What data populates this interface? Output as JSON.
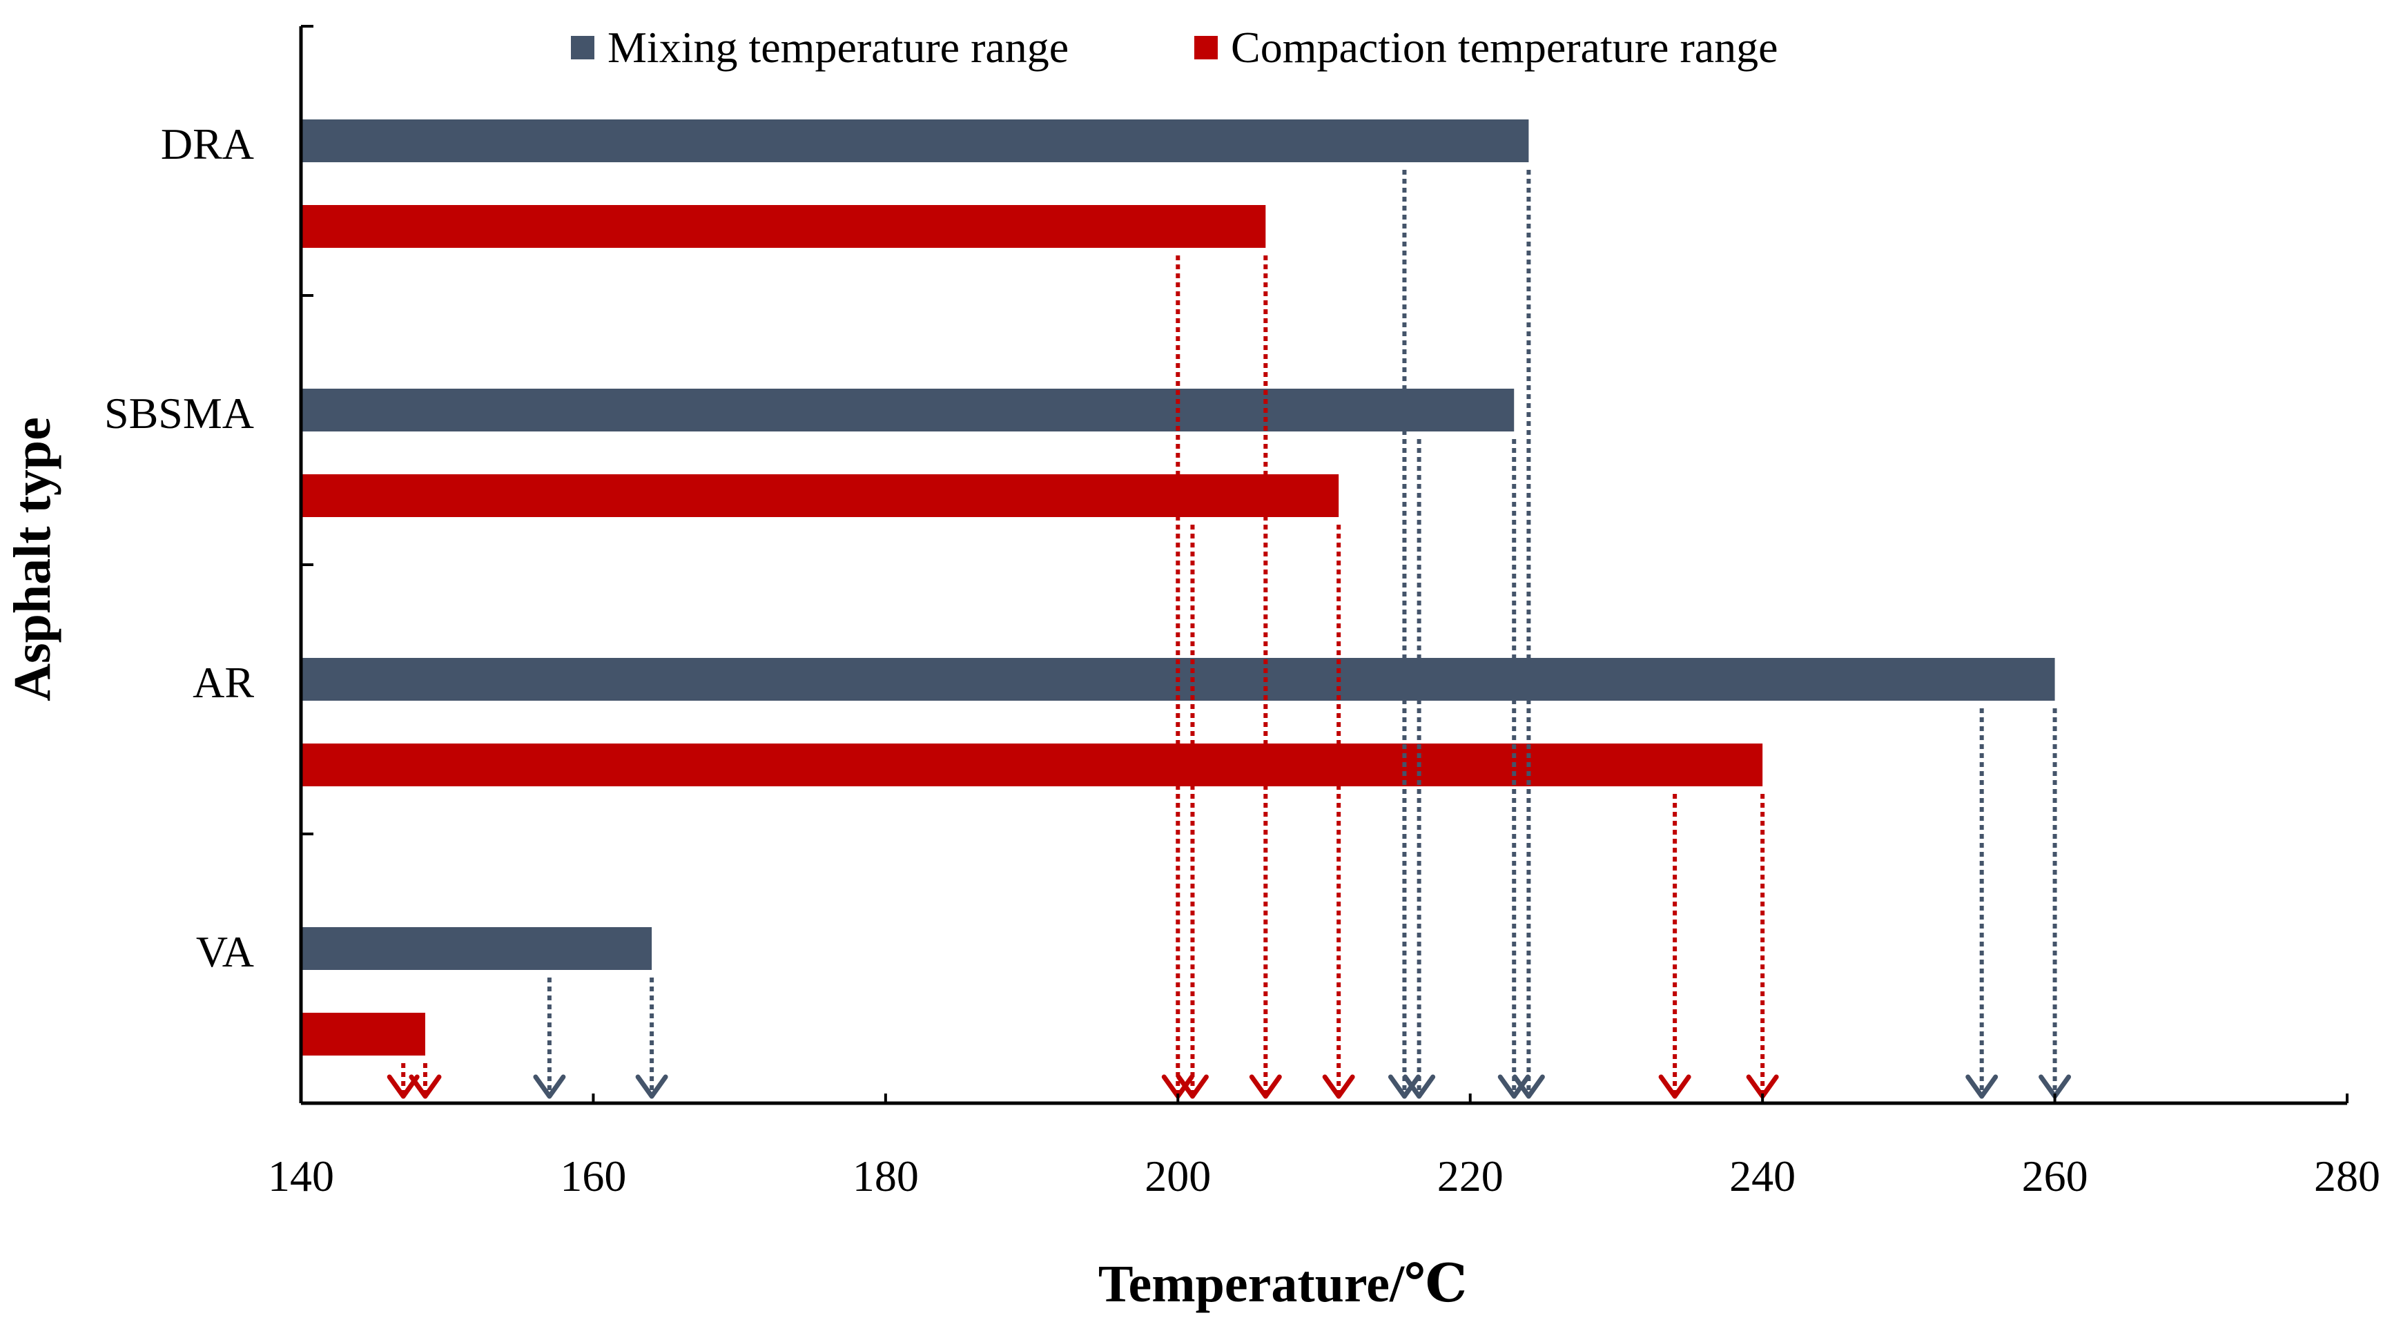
{
  "chart_data": {
    "type": "bar",
    "orientation": "horizontal",
    "xlabel": "Temperature/℃",
    "ylabel": "Asphalt type",
    "xlim": [
      140,
      280
    ],
    "xticks": [
      140,
      160,
      180,
      200,
      220,
      240,
      260,
      280
    ],
    "xtick_labels": [
      "140",
      "160",
      "180",
      "200",
      "220",
      "240",
      "260",
      "280"
    ],
    "grid": false,
    "legend_position": "top-center",
    "categories": [
      "DRA",
      "SBSMA",
      "AR",
      "VA"
    ],
    "series": [
      {
        "name": "Mixing temperature range",
        "color": "#44546a",
        "ranges": [
          [
            215.5,
            224
          ],
          [
            216.5,
            223
          ],
          [
            255,
            260
          ],
          [
            157,
            164
          ]
        ]
      },
      {
        "name": "Compaction temperature range",
        "color": "#c00000",
        "ranges": [
          [
            200,
            206
          ],
          [
            201,
            211
          ],
          [
            234,
            240
          ],
          [
            147,
            148.5
          ]
        ]
      }
    ]
  }
}
